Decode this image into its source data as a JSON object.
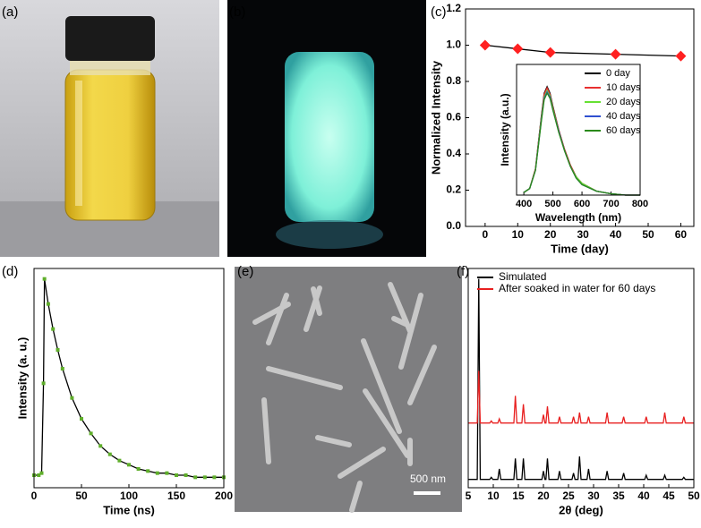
{
  "panel_labels": [
    "(a)",
    "(b)",
    "(c)",
    "(d)",
    "(e)",
    "(f)"
  ],
  "scale_bar": "500 nm",
  "chart_data": [
    {
      "type": "line",
      "ylabel": "Normalized Intensity",
      "xlabel": "Time (day)",
      "x": [
        0,
        10,
        20,
        40,
        60
      ],
      "values": [
        1.0,
        0.98,
        0.96,
        0.95,
        0.94
      ],
      "color": "#ff2020",
      "line_color": "#000000",
      "marker": "diamond",
      "xlim": [
        -6,
        64
      ],
      "xticks": [
        0,
        10,
        20,
        30,
        40,
        50,
        60
      ],
      "ylim": [
        0,
        1.2
      ],
      "yticks": [
        {
          "value": 0,
          "label": "0.0"
        },
        0.2,
        0.4,
        0.6,
        0.8,
        {
          "value": 1,
          "label": "1.0"
        },
        1.2
      ]
    },
    {
      "type": "line",
      "ylabel": "Intensity  (a.u.)",
      "xlabel": "Wavelength (nm)",
      "x": [
        400,
        420,
        440,
        460,
        470,
        480,
        490,
        500,
        520,
        540,
        560,
        580,
        600,
        650,
        700,
        750,
        800
      ],
      "series": [
        {
          "name": "0 day",
          "color": "#000000",
          "values": [
            0.02,
            0.05,
            0.2,
            0.6,
            0.78,
            0.83,
            0.78,
            0.68,
            0.5,
            0.35,
            0.23,
            0.14,
            0.09,
            0.03,
            0.01,
            0,
            0
          ]
        },
        {
          "name": "10 days",
          "color": "#e83030",
          "values": [
            0.02,
            0.05,
            0.2,
            0.59,
            0.77,
            0.82,
            0.77,
            0.67,
            0.5,
            0.35,
            0.23,
            0.14,
            0.09,
            0.03,
            0.01,
            0,
            0
          ]
        },
        {
          "name": "20 days",
          "color": "#66e033",
          "values": [
            0.02,
            0.05,
            0.19,
            0.58,
            0.75,
            0.8,
            0.76,
            0.66,
            0.49,
            0.34,
            0.22,
            0.14,
            0.09,
            0.03,
            0.01,
            0,
            0
          ]
        },
        {
          "name": "40 days",
          "color": "#3050d0",
          "values": [
            0.02,
            0.05,
            0.19,
            0.57,
            0.74,
            0.79,
            0.75,
            0.65,
            0.49,
            0.34,
            0.22,
            0.13,
            0.08,
            0.03,
            0.01,
            0,
            0
          ]
        },
        {
          "name": "60 days",
          "color": "#2a8a1a",
          "values": [
            0.02,
            0.05,
            0.19,
            0.56,
            0.73,
            0.78,
            0.74,
            0.65,
            0.48,
            0.34,
            0.22,
            0.13,
            0.08,
            0.03,
            0.01,
            0,
            0
          ]
        }
      ],
      "legend": "upper right",
      "xlim": [
        375,
        800
      ],
      "xticks": [
        400,
        500,
        600,
        700,
        800
      ],
      "ylim": [
        0,
        1
      ]
    },
    {
      "type": "line",
      "ylabel": "Intensity (a. u.)",
      "xlabel": "Time (ns)",
      "x": [
        0,
        5,
        8,
        10,
        11,
        15,
        20,
        25,
        30,
        40,
        50,
        60,
        70,
        80,
        90,
        100,
        110,
        120,
        130,
        140,
        150,
        160,
        170,
        180,
        190,
        200
      ],
      "values": [
        0.06,
        0.06,
        0.07,
        0.5,
        1.0,
        0.88,
        0.76,
        0.66,
        0.57,
        0.43,
        0.33,
        0.26,
        0.2,
        0.16,
        0.13,
        0.11,
        0.09,
        0.08,
        0.07,
        0.07,
        0.06,
        0.06,
        0.05,
        0.05,
        0.05,
        0.05
      ],
      "color": "#5fae2a",
      "line_color": "#000000",
      "marker": "square",
      "xlim": [
        0,
        200
      ],
      "xticks": [
        0,
        50,
        100,
        150,
        200
      ],
      "ylim": [
        0,
        1.05
      ]
    },
    {
      "type": "line",
      "xlabel": "2θ (deg)",
      "x": [
        5,
        6.8,
        7.1,
        7.4,
        9.3,
        9.6,
        9.9,
        10.9,
        11.2,
        11.5,
        14.1,
        14.4,
        14.7,
        15.7,
        16.0,
        16.3,
        19.7,
        20.0,
        20.3,
        20.5,
        20.8,
        21.1,
        22.9,
        23.2,
        23.5,
        25.7,
        26.0,
        26.3,
        26.9,
        27.2,
        27.5,
        28.7,
        29.0,
        29.3,
        32.4,
        32.7,
        33.0,
        35.7,
        36.0,
        36.3,
        40.2,
        40.5,
        40.8,
        43.9,
        44.2,
        44.5,
        47.7,
        48.0,
        48.3,
        50
      ],
      "series": [
        {
          "name": "Simulated",
          "color": "#000000",
          "values": [
            0.04,
            0.04,
            1.0,
            0.04,
            0.04,
            0.05,
            0.04,
            0.04,
            0.09,
            0.04,
            0.04,
            0.14,
            0.04,
            0.04,
            0.14,
            0.04,
            0.04,
            0.08,
            0.04,
            0.04,
            0.14,
            0.04,
            0.04,
            0.08,
            0.04,
            0.04,
            0.07,
            0.04,
            0.04,
            0.15,
            0.04,
            0.04,
            0.09,
            0.04,
            0.04,
            0.08,
            0.04,
            0.04,
            0.07,
            0.04,
            0.04,
            0.06,
            0.04,
            0.04,
            0.06,
            0.04,
            0.04,
            0.05,
            0.04,
            0.04
          ]
        },
        {
          "name": "After soaked in water for 60 days",
          "color": "#e82020",
          "values": [
            0.31,
            0.31,
            0.56,
            0.31,
            0.31,
            0.32,
            0.31,
            0.31,
            0.33,
            0.31,
            0.31,
            0.44,
            0.31,
            0.31,
            0.4,
            0.31,
            0.31,
            0.35,
            0.31,
            0.31,
            0.39,
            0.31,
            0.31,
            0.34,
            0.31,
            0.31,
            0.34,
            0.31,
            0.31,
            0.36,
            0.31,
            0.31,
            0.34,
            0.31,
            0.31,
            0.36,
            0.31,
            0.31,
            0.34,
            0.31,
            0.31,
            0.34,
            0.31,
            0.31,
            0.36,
            0.31,
            0.31,
            0.34,
            0.31,
            0.31
          ]
        }
      ],
      "legend": "upper left",
      "xlim": [
        5,
        50
      ],
      "xticks": [
        5,
        10,
        15,
        20,
        25,
        30,
        35,
        40,
        45,
        50
      ],
      "ylim": [
        0,
        1.05
      ]
    }
  ]
}
